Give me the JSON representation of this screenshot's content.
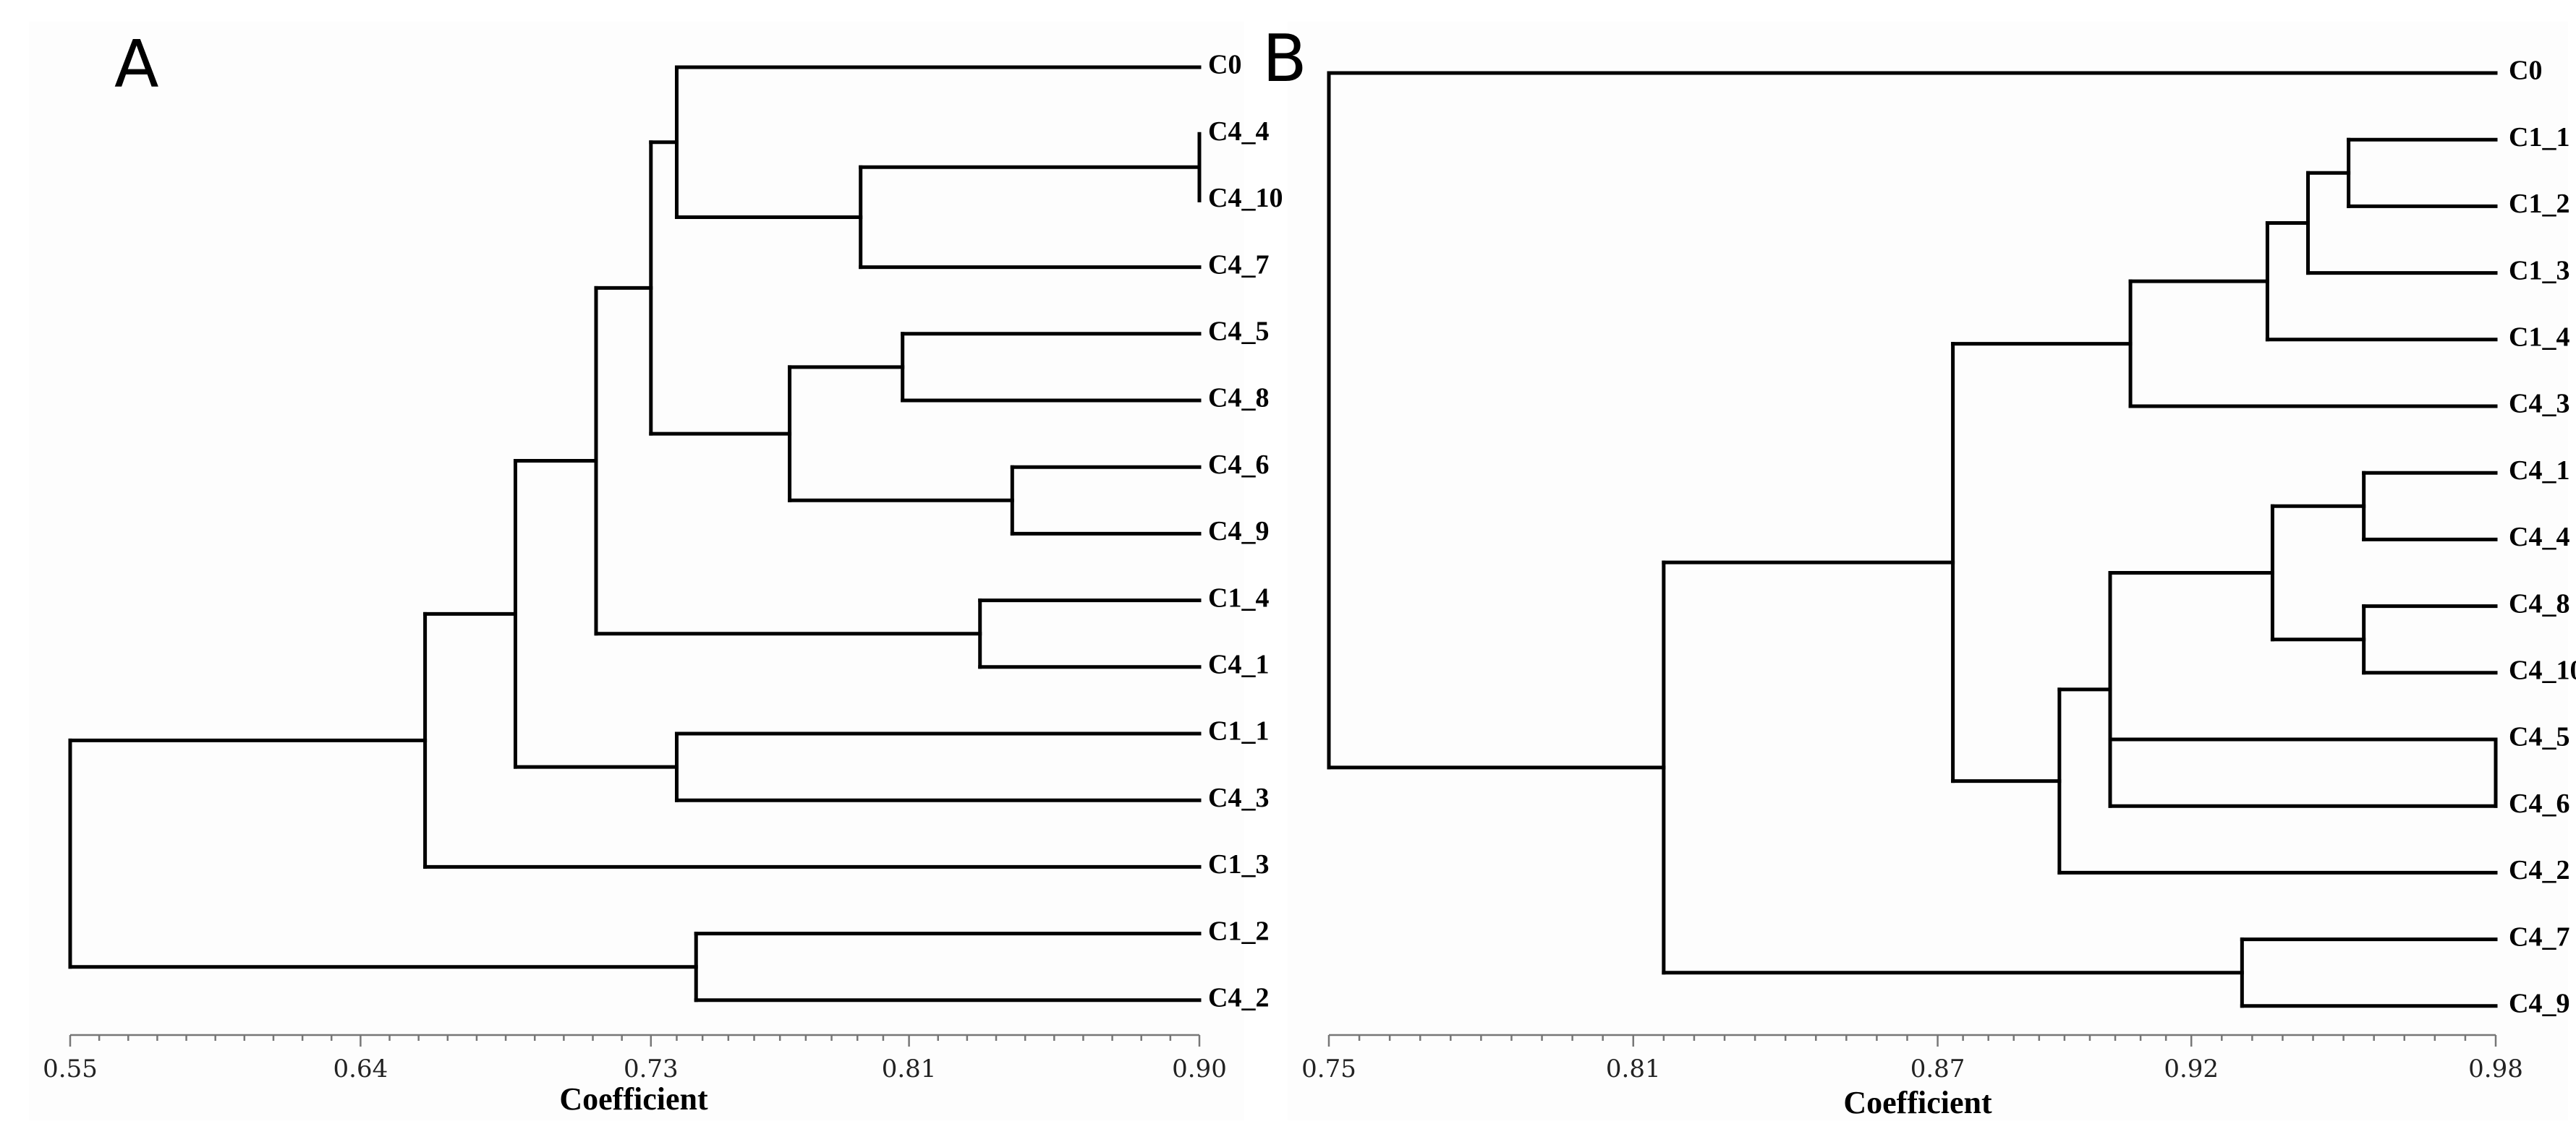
{
  "chart_data": [
    {
      "type": "dendrogram",
      "panel_label": "A",
      "xlabel": "Coefficient",
      "xlim": [
        0.55,
        0.9
      ],
      "xticks": [
        "0.55",
        "0.64",
        "0.73",
        "0.81",
        "0.90"
      ],
      "tick_values": [
        0.55,
        0.64,
        0.73,
        0.81,
        0.9
      ],
      "leaves": [
        "C0",
        "C4_4",
        "C4_10",
        "C4_7",
        "C4_5",
        "C4_8",
        "C4_6",
        "C4_9",
        "C1_4",
        "C4_1",
        "C1_1",
        "C4_3",
        "C1_3",
        "C1_2",
        "C4_2"
      ],
      "merges": [
        {
          "id": "a1",
          "children": [
            "C4_4",
            "C4_10"
          ],
          "height": 0.9
        },
        {
          "id": "a2",
          "children": [
            "a1",
            "C4_7"
          ],
          "height": 0.795
        },
        {
          "id": "a3",
          "children": [
            "C0",
            "a2"
          ],
          "height": 0.738
        },
        {
          "id": "a4",
          "children": [
            "C4_5",
            "C4_8"
          ],
          "height": 0.808
        },
        {
          "id": "a5",
          "children": [
            "C4_6",
            "C4_9"
          ],
          "height": 0.842
        },
        {
          "id": "a6",
          "children": [
            "a4",
            "a5"
          ],
          "height": 0.773
        },
        {
          "id": "a7",
          "children": [
            "a3",
            "a6"
          ],
          "height": 0.73
        },
        {
          "id": "a8",
          "children": [
            "C1_4",
            "C4_1"
          ],
          "height": 0.832
        },
        {
          "id": "a9",
          "children": [
            "a7",
            "a8"
          ],
          "height": 0.713
        },
        {
          "id": "a10",
          "children": [
            "C1_1",
            "C4_3"
          ],
          "height": 0.738
        },
        {
          "id": "a11",
          "children": [
            "a9",
            "a10"
          ],
          "height": 0.688
        },
        {
          "id": "a12",
          "children": [
            "a11",
            "C1_3"
          ],
          "height": 0.66
        },
        {
          "id": "a13",
          "children": [
            "C1_2",
            "C4_2"
          ],
          "height": 0.744
        },
        {
          "id": "a14",
          "children": [
            "a12",
            "a13"
          ],
          "height": 0.55
        }
      ]
    },
    {
      "type": "dendrogram",
      "panel_label": "B",
      "xlabel": "Coefficient",
      "xlim": [
        0.75,
        0.98
      ],
      "xticks": [
        "0.75",
        "0.81",
        "0.87",
        "0.92",
        "0.98"
      ],
      "tick_values": [
        0.75,
        0.81,
        0.87,
        0.92,
        0.98
      ],
      "leaves": [
        "C0",
        "C1_1",
        "C1_2",
        "C1_3",
        "C1_4",
        "C4_3",
        "C4_1",
        "C4_4",
        "C4_8",
        "C4_10",
        "C4_5",
        "C4_6",
        "C4_2",
        "C4_7",
        "C4_9"
      ],
      "merges": [
        {
          "id": "b1",
          "children": [
            "C1_1",
            "C1_2"
          ],
          "height": 0.951
        },
        {
          "id": "b2",
          "children": [
            "b1",
            "C1_3"
          ],
          "height": 0.943
        },
        {
          "id": "b3",
          "children": [
            "b2",
            "C1_4"
          ],
          "height": 0.935
        },
        {
          "id": "b4",
          "children": [
            "b3",
            "C4_3"
          ],
          "height": 0.908
        },
        {
          "id": "b5",
          "children": [
            "C4_1",
            "C4_4"
          ],
          "height": 0.954
        },
        {
          "id": "b6",
          "children": [
            "C4_8",
            "C4_10"
          ],
          "height": 0.954
        },
        {
          "id": "b7",
          "children": [
            "b5",
            "b6"
          ],
          "height": 0.936
        },
        {
          "id": "b8",
          "children": [
            "b7",
            "C4_5",
            "C4_6"
          ],
          "height": 0.904
        },
        {
          "id": "b9",
          "children": [
            "C4_5",
            "C4_6"
          ],
          "height": 0.98
        },
        {
          "id": "b10",
          "children": [
            "b8",
            "C4_2"
          ],
          "height": 0.894
        },
        {
          "id": "b11",
          "children": [
            "b4",
            "b10"
          ],
          "height": 0.873
        },
        {
          "id": "b12",
          "children": [
            "C4_7",
            "C4_9"
          ],
          "height": 0.93
        },
        {
          "id": "b13",
          "children": [
            "b11",
            "b12"
          ],
          "height": 0.816
        },
        {
          "id": "b14",
          "children": [
            "C0",
            "b13"
          ],
          "height": 0.75
        }
      ]
    }
  ]
}
